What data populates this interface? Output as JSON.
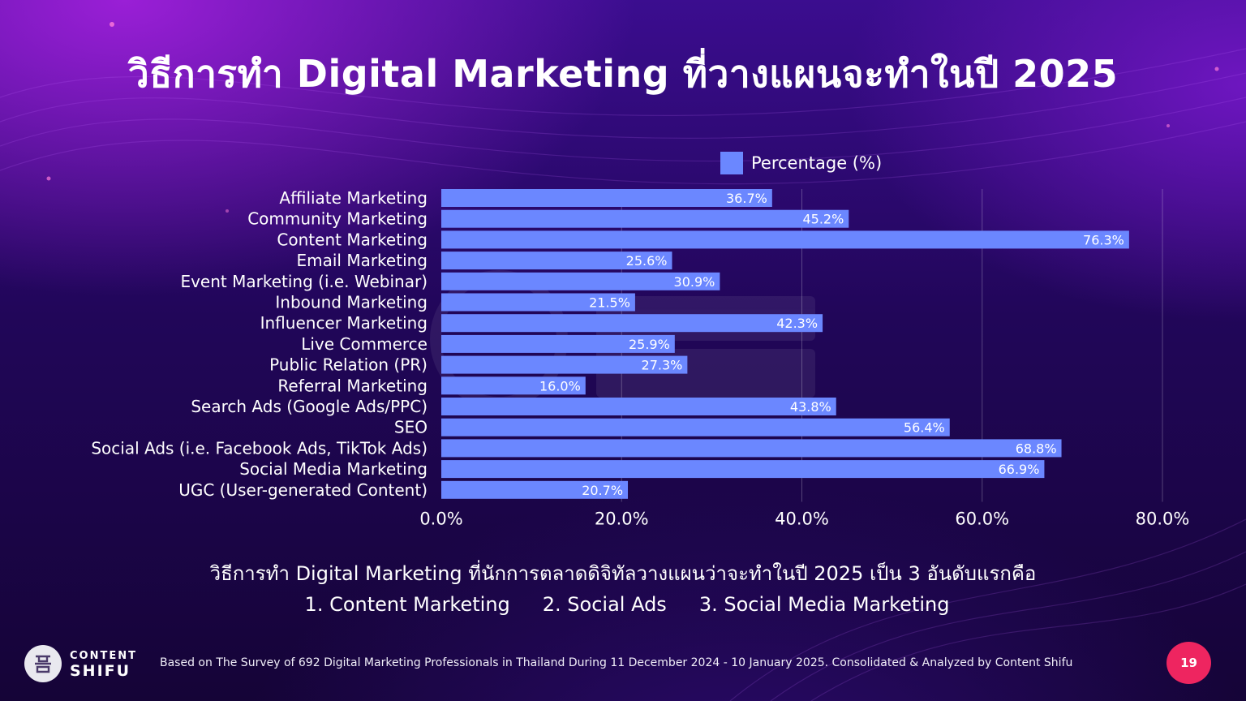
{
  "title": "วิธีการทำ Digital Marketing ที่วางแผนจะทำในปี 2025",
  "chart_data": {
    "type": "bar",
    "orientation": "horizontal",
    "categories": [
      "Affiliate Marketing",
      "Community Marketing",
      "Content Marketing",
      "Email Marketing",
      "Event Marketing (i.e. Webinar)",
      "Inbound Marketing",
      "Influencer Marketing",
      "Live Commerce",
      "Public Relation (PR)",
      "Referral Marketing",
      "Search Ads (Google Ads/PPC)",
      "SEO",
      "Social Ads (i.e. Facebook Ads, TikTok Ads)",
      "Social Media Marketing",
      "UGC (User-generated Content)"
    ],
    "series": [
      {
        "name": "Percentage (%)",
        "values": [
          36.7,
          45.2,
          76.3,
          25.6,
          30.9,
          21.5,
          42.3,
          25.9,
          27.3,
          16.0,
          43.8,
          56.4,
          68.8,
          66.9,
          20.7
        ]
      }
    ],
    "data_labels": [
      "36.7%",
      "45.2%",
      "76.3%",
      "25.6%",
      "30.9%",
      "21.5%",
      "42.3%",
      "25.9%",
      "27.3%",
      "16.0%",
      "43.8%",
      "56.4%",
      "68.8%",
      "66.9%",
      "20.7%"
    ],
    "x_ticks": [
      "0.0%",
      "20.0%",
      "40.0%",
      "60.0%",
      "80.0%"
    ],
    "xlim": [
      0,
      80
    ],
    "legend_position": "top",
    "grid": "vertical",
    "bar_color": "#6b87ff"
  },
  "summary": {
    "line1": "วิธีการทำ Digital Marketing ที่นักการตลาดดิจิทัลวางแผนว่าจะทำในปี 2025 เป็น 3 อันดับแรกคือ",
    "items": [
      "1. Content Marketing",
      "2. Social Ads",
      "3. Social Media Marketing"
    ]
  },
  "brand": {
    "top": "CONTENT",
    "bottom": "SHIFU"
  },
  "footnote": "Based on The Survey of 692 Digital Marketing Professionals in Thailand During 11 December 2024 - 10 January 2025. Consolidated & Analyzed by Content Shifu",
  "page_number": "19"
}
